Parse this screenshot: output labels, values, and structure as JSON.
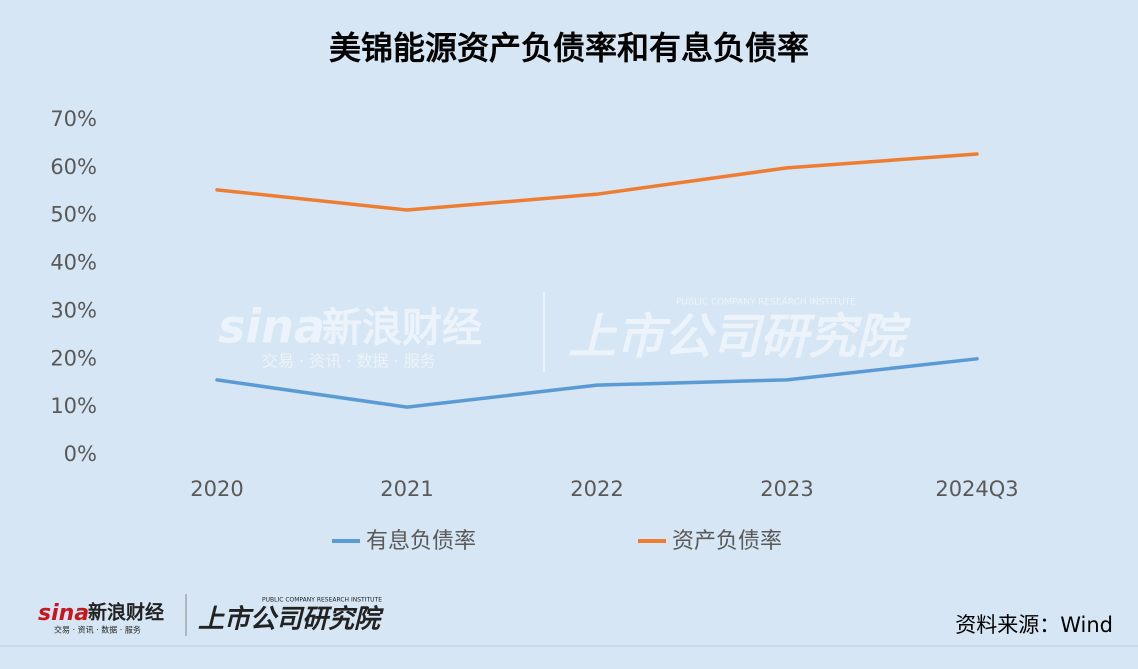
{
  "chart_data": {
    "type": "line",
    "title": "美锦能源资产负债率和有息负债率",
    "categories": [
      "2020",
      "2021",
      "2022",
      "2023",
      "2024Q3"
    ],
    "series": [
      {
        "name": "有息负债率",
        "color": "#5b9bd5",
        "values": [
          15.7,
          10.0,
          14.6,
          15.7,
          20.1
        ]
      },
      {
        "name": "资产负债率",
        "color": "#ed7d31",
        "values": [
          55.4,
          51.2,
          54.5,
          60.0,
          62.9
        ]
      }
    ],
    "ylim": [
      0,
      70
    ],
    "yticks": [
      {
        "value": 0,
        "label": "0%"
      },
      {
        "value": 10,
        "label": "10%"
      },
      {
        "value": 20,
        "label": "20%"
      },
      {
        "value": 30,
        "label": "30%"
      },
      {
        "value": 40,
        "label": "40%"
      },
      {
        "value": 50,
        "label": "50%"
      },
      {
        "value": 60,
        "label": "60%"
      },
      {
        "value": 70,
        "label": "70%"
      }
    ],
    "grid": false,
    "legend": "bottom",
    "source": "资料来源：Wind"
  },
  "branding": {
    "sina": "sina",
    "name": "新浪财经",
    "tagline": "交易 · 资讯 · 数据 · 服务",
    "institute": "上市公司研究院",
    "institute_en": "PUBLIC COMPANY RESEARCH INSTITUTE"
  }
}
